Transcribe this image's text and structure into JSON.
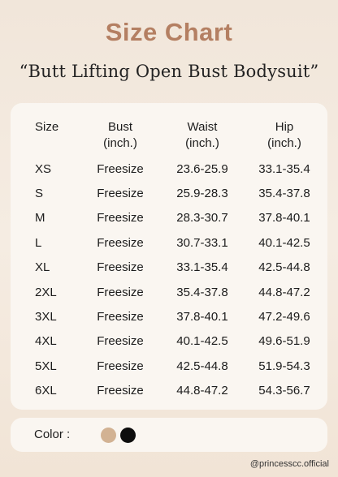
{
  "title": "Size Chart",
  "subtitle": "“Butt Lifting Open Bust Bodysuit”",
  "table": {
    "headers": [
      {
        "label": "Size",
        "unit": ""
      },
      {
        "label": "Bust",
        "unit": "(inch.)"
      },
      {
        "label": "Waist",
        "unit": "(inch.)"
      },
      {
        "label": "Hip",
        "unit": "(inch.)"
      }
    ],
    "rows": [
      [
        "XS",
        "Freesize",
        "23.6-25.9",
        "33.1-35.4"
      ],
      [
        "S",
        "Freesize",
        "25.9-28.3",
        "35.4-37.8"
      ],
      [
        "M",
        "Freesize",
        "28.3-30.7",
        "37.8-40.1"
      ],
      [
        "L",
        "Freesize",
        "30.7-33.1",
        "40.1-42.5"
      ],
      [
        "XL",
        "Freesize",
        "33.1-35.4",
        "42.5-44.8"
      ],
      [
        "2XL",
        "Freesize",
        "35.4-37.8",
        "44.8-47.2"
      ],
      [
        "3XL",
        "Freesize",
        "37.8-40.1",
        "47.2-49.6"
      ],
      [
        "4XL",
        "Freesize",
        "40.1-42.5",
        "49.6-51.9"
      ],
      [
        "5XL",
        "Freesize",
        "42.5-44.8",
        "51.9-54.3"
      ],
      [
        "6XL",
        "Freesize",
        "44.8-47.2",
        "54.3-56.7"
      ]
    ]
  },
  "colors": {
    "label": "Color :",
    "swatches": [
      "#d2b293",
      "#0d0d0d"
    ]
  },
  "handle": "@princesscc.official"
}
